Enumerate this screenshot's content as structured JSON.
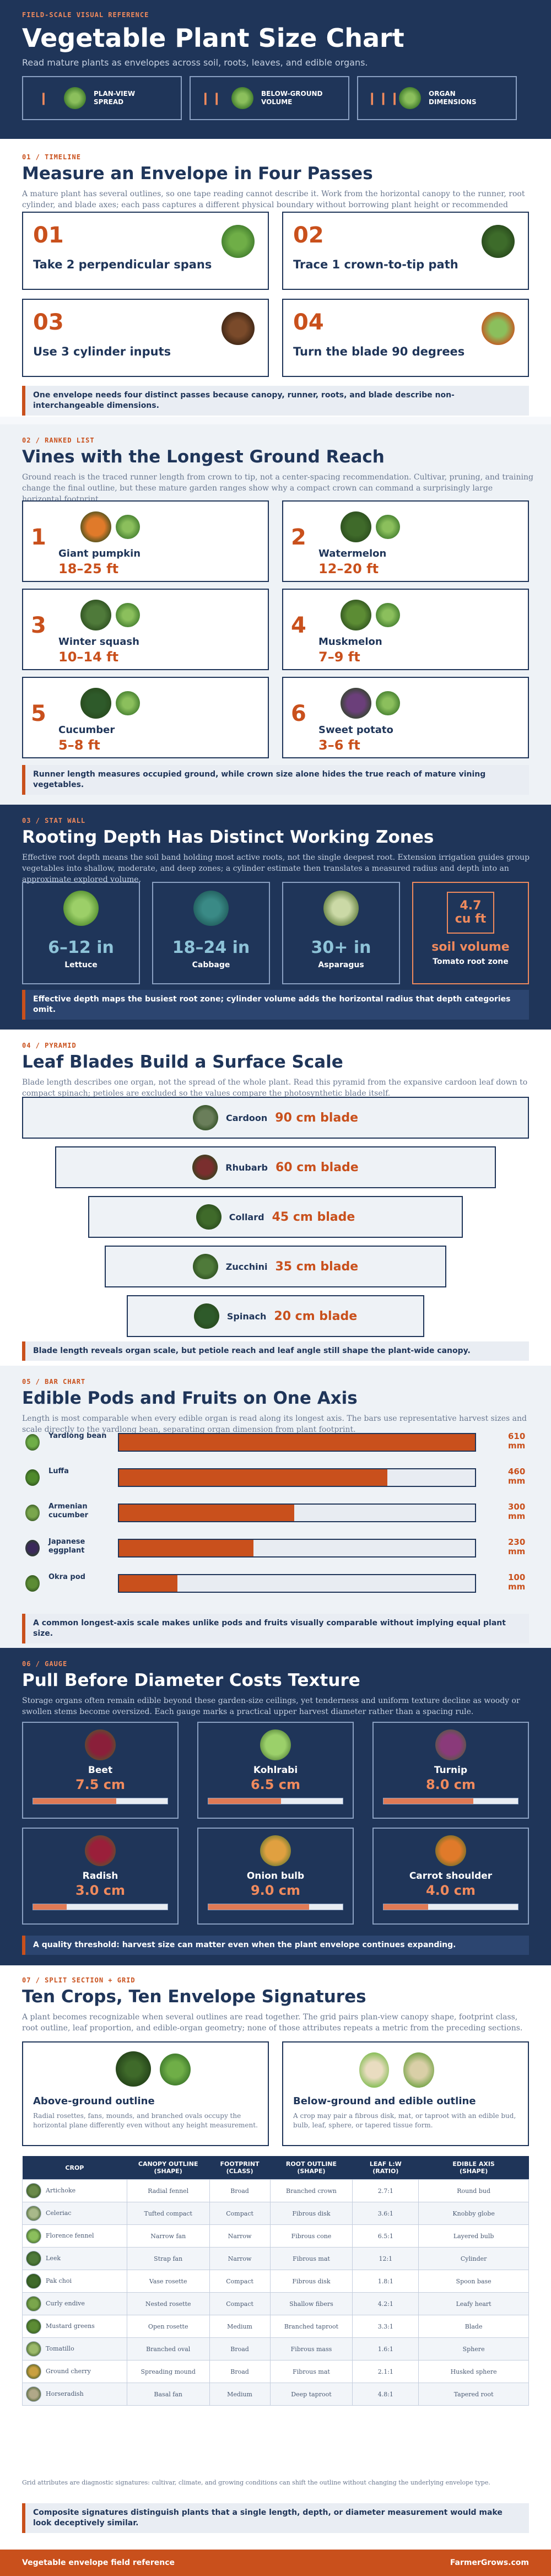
{
  "header": {
    "kicker": "FIELD-SCALE VISUAL REFERENCE",
    "title": "Vegetable Plant Size Chart",
    "subtitle": "Read mature plants as envelopes across soil, roots, leaves, and edible organs.",
    "boxes": [
      {
        "label": "PLAN-VIEW\nSPREAD",
        "icon": "leafy-plant-icon",
        "marker": "I"
      },
      {
        "label": "BELOW-GROUND\nVOLUME",
        "icon": "root-volume-icon",
        "marker": "II"
      },
      {
        "label": "ORGAN\nDIMENSIONS",
        "icon": "leaf-organ-icon",
        "marker": "III"
      }
    ]
  },
  "s1": {
    "kicker": "01 / TIMELINE",
    "title": "Measure an Envelope in Four Passes",
    "intro": "A mature plant has several outlines, so one tape reading cannot describe it. Work from the horizontal canopy to the runner, root cylinder, and blade axes; each pass captures a different physical boundary without borrowing plant height or recommended spacing.",
    "steps": [
      {
        "num": "01",
        "text": "Take 2 perpendicular spans"
      },
      {
        "num": "02",
        "text": "Trace 1 crown-to-tip path"
      },
      {
        "num": "03",
        "text": "Use 3 cylinder inputs"
      },
      {
        "num": "04",
        "text": "Turn the blade 90 degrees"
      }
    ],
    "takeaway": "One envelope needs four distinct passes because canopy, runner, roots, and blade describe non-interchangeable dimensions."
  },
  "s2": {
    "kicker": "02 / RANKED LIST",
    "title": "Vines with the Longest Ground Reach",
    "intro": "Ground reach is the traced runner length from crown to tip, not a center-spacing recommendation. Cultivar, pruning, and training change the final outline, but these mature garden ranges show why a compact crown can command a surprisingly large horizontal footprint.",
    "items": [
      {
        "rank": "1",
        "name": "Giant pumpkin",
        "value": "18–25 ft"
      },
      {
        "rank": "2",
        "name": "Watermelon",
        "value": "12–20 ft"
      },
      {
        "rank": "3",
        "name": "Winter squash",
        "value": "10–14 ft"
      },
      {
        "rank": "4",
        "name": "Muskmelon",
        "value": "7–9 ft"
      },
      {
        "rank": "5",
        "name": "Cucumber",
        "value": "5–8 ft"
      },
      {
        "rank": "6",
        "name": "Sweet potato",
        "value": "3–6 ft"
      }
    ],
    "takeaway": "Runner length measures occupied ground, while crown size alone hides the true reach of mature vining vegetables."
  },
  "s3": {
    "kicker": "03 / STAT WALL",
    "title": "Rooting Depth Has Distinct Working Zones",
    "intro": "Effective root depth means the soil band holding most active roots, not the single deepest root. Extension irrigation guides group vegetables into shallow, moderate, and deep zones; a cylinder estimate then translates a measured radius and depth into an approximate explored volume.",
    "stats": [
      {
        "value": "6–12 in",
        "label": "Lettuce"
      },
      {
        "value": "18–24 in",
        "label": "Cabbage"
      },
      {
        "value": "30+ in",
        "label": "Asparagus"
      }
    ],
    "volume": {
      "value": "4.7\ncu ft",
      "title": "soil volume",
      "label": "Tomato root zone"
    },
    "takeaway": "Effective depth maps the busiest root zone; cylinder volume adds the horizontal radius that depth categories omit."
  },
  "s4": {
    "kicker": "04 / PYRAMID",
    "title": "Leaf Blades Build a Surface Scale",
    "intro": "Blade length describes one organ, not the spread of the whole plant. Read this pyramid from the expansive cardoon leaf down to compact spinach; petioles are excluded so the values compare the photosynthetic blade itself.",
    "tiers": [
      {
        "name": "Cardoon",
        "value": "90 cm blade"
      },
      {
        "name": "Rhubarb",
        "value": "60 cm blade"
      },
      {
        "name": "Collard",
        "value": "45 cm blade"
      },
      {
        "name": "Zucchini",
        "value": "35 cm blade"
      },
      {
        "name": "Spinach",
        "value": "20 cm blade"
      }
    ],
    "takeaway": "Blade length reveals organ scale, but petiole reach and leaf angle still shape the plant-wide canopy."
  },
  "s5": {
    "kicker": "05 / BAR CHART",
    "title": "Edible Pods and Fruits on One Axis",
    "intro": "Length is most comparable when every edible organ is read along its longest axis. The bars use representative harvest sizes and scale directly to the yardlong bean, separating organ dimension from plant footprint.",
    "takeaway": "A common longest-axis scale makes unlike pods and fruits visually comparable without implying equal plant size."
  },
  "chart_data": {
    "type": "bar",
    "categories": [
      "Yardlong bean",
      "Luffa",
      "Armenian cucumber",
      "Japanese eggplant",
      "Okra pod"
    ],
    "values": [
      610,
      460,
      300,
      230,
      100
    ],
    "unit": "mm",
    "value_labels": [
      "610\nmm",
      "460\nmm",
      "300\nmm",
      "230\nmm",
      "100\nmm"
    ]
  },
  "s6": {
    "kicker": "06 / GAUGE",
    "title": "Pull Before Diameter Costs Texture",
    "intro": "Storage organs often remain edible beyond these garden-size ceilings, yet tenderness and uniform texture decline as woody or swollen stems become oversized. Each gauge marks a practical upper harvest diameter rather than a spacing rule.",
    "gauges": [
      {
        "name": "Beet",
        "value": "7.5 cm",
        "fraction": 0.62
      },
      {
        "name": "Kohlrabi",
        "value": "6.5 cm",
        "fraction": 0.54
      },
      {
        "name": "Turnip",
        "value": "8.0 cm",
        "fraction": 0.67
      },
      {
        "name": "Radish",
        "value": "3.0 cm",
        "fraction": 0.25
      },
      {
        "name": "Onion bulb",
        "value": "9.0 cm",
        "fraction": 0.75
      },
      {
        "name": "Carrot shoulder",
        "value": "4.0 cm",
        "fraction": 0.33
      }
    ],
    "takeaway": "A quality threshold: harvest size can matter even when the plant envelope continues expanding."
  },
  "s7": {
    "kicker": "07 / SPLIT SECTION + GRID",
    "title": "Ten Crops, Ten Envelope Signatures",
    "intro": "A plant becomes recognizable when several outlines are read together. The grid pairs plan-view canopy shape, footprint class, root outline, leaf proportion, and edible-organ geometry; none of those attributes repeats a metric from the preceding sections.",
    "left": {
      "title": "Above-ground outline",
      "text": "Radial rosettes, fans, mounds, and branched ovals occupy the horizontal plane differently even without any height measurement."
    },
    "right": {
      "title": "Below-ground and edible outline",
      "text": "A crop may pair a fibrous disk, mat, or taproot with an edible bud, bulb, leaf, sphere, or tapered tissue form."
    },
    "columns": [
      "CROP",
      "CANOPY OUTLINE\n(SHAPE)",
      "FOOTPRINT\n(CLASS)",
      "ROOT OUTLINE\n(SHAPE)",
      "LEAF L:W\n(RATIO)",
      "EDIBLE AXIS\n(SHAPE)"
    ],
    "rows": [
      [
        "Artichoke",
        "Radial fennel",
        "Broad",
        "Branched crown",
        "2.7:1",
        "Round bud"
      ],
      [
        "Celeriac",
        "Tufted compact",
        "Compact",
        "Fibrous disk",
        "3.6:1",
        "Knobby globe"
      ],
      [
        "Florence fennel",
        "Narrow fan",
        "Narrow",
        "Fibrous cone",
        "6.5:1",
        "Layered bulb"
      ],
      [
        "Leek",
        "Strap fan",
        "Narrow",
        "Fibrous mat",
        "12:1",
        "Cylinder"
      ],
      [
        "Pak choi",
        "Vase rosette",
        "Compact",
        "Fibrous disk",
        "1.8:1",
        "Spoon base"
      ],
      [
        "Curly endive",
        "Nested rosette",
        "Compact",
        "Shallow fibers",
        "4.2:1",
        "Leafy heart"
      ],
      [
        "Mustard greens",
        "Open rosette",
        "Medium",
        "Branched taproot",
        "3.3:1",
        "Blade"
      ],
      [
        "Tomatillo",
        "Branched oval",
        "Broad",
        "Fibrous mass",
        "1.6:1",
        "Sphere"
      ],
      [
        "Ground cherry",
        "Spreading mound",
        "Broad",
        "Fibrous mat",
        "2.1:1",
        "Husked sphere"
      ],
      [
        "Horseradish",
        "Basal fan",
        "Medium",
        "Deep taproot",
        "4.8:1",
        "Tapered root"
      ]
    ],
    "note": "Grid attributes are diagnostic signatures: cultivar, climate, and growing conditions can shift the outline without changing the underlying envelope type.",
    "takeaway": "Composite signatures distinguish plants that a single length, depth, or diameter measurement would make look deceptively similar."
  },
  "footer": {
    "left": "Vegetable envelope field reference",
    "right": "FarmerGrows.com"
  },
  "colors": {
    "navy": "#1f3559",
    "accent": "#c9501c",
    "pale": "#e9edf3"
  }
}
